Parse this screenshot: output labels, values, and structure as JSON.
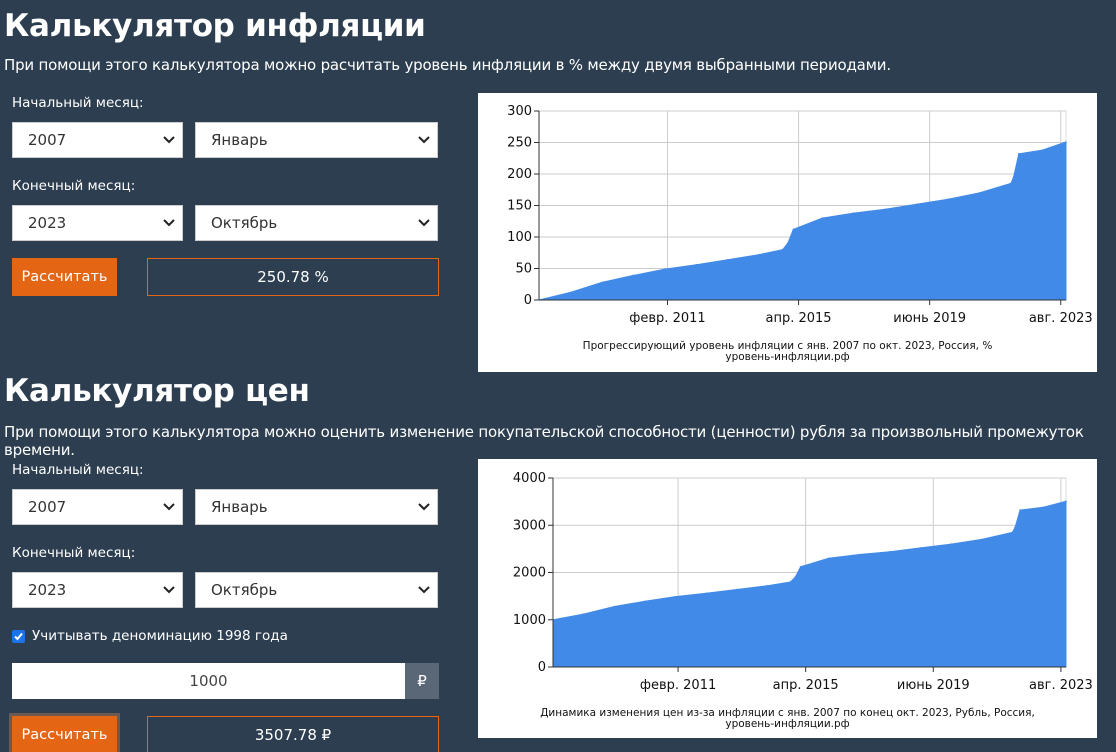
{
  "inflation": {
    "title": "Калькулятор инфляции",
    "description": "При помощи этого калькулятора можно расчитать уровень инфляции в % между двумя выбранными периодами.",
    "start_label": "Начальный месяц:",
    "start_year": "2007",
    "start_month": "Январь",
    "end_label": "Конечный месяц:",
    "end_year": "2023",
    "end_month": "Октябрь",
    "calc_button": "Рассчитать",
    "result": "250.78 %"
  },
  "prices": {
    "title": "Калькулятор цен",
    "description": "При помощи этого калькулятора можно оценить изменение покупательской способности (ценности) рубля за произвольный промежуток времени.",
    "start_label": "Начальный месяц:",
    "start_year": "2007",
    "start_month": "Январь",
    "end_label": "Конечный месяц:",
    "end_year": "2023",
    "end_month": "Октябрь",
    "denomination_label": "Учитывать деноминацию 1998 года",
    "denomination_checked": true,
    "amount": "1000",
    "currency_symbol": "₽",
    "calc_button": "Рассчитать",
    "result": "3507.78 ₽"
  },
  "colors": {
    "background": "#2c3e50",
    "accent": "#e46614",
    "chart_fill": "#428ae8"
  },
  "chart_data": [
    {
      "type": "area",
      "caption": "Прогрессирующий уровень инфляции с янв. 2007 по окт. 2023, Россия, %",
      "caption_source": "уровень-инфляции.рф",
      "x_tick_labels": [
        "февр. 2011",
        "апр. 2015",
        "июнь 2019",
        "авг. 2023"
      ],
      "y_tick_labels": [
        "0",
        "50",
        "100",
        "150",
        "200",
        "250",
        "300"
      ],
      "ylim": [
        0,
        300
      ],
      "x": [
        "2007-01",
        "2008-01",
        "2009-01",
        "2010-01",
        "2011-01",
        "2012-01",
        "2013-01",
        "2014-01",
        "2014-10",
        "2014-12",
        "2015-02",
        "2016-01",
        "2017-01",
        "2018-01",
        "2019-01",
        "2020-01",
        "2021-01",
        "2022-01",
        "2022-02",
        "2022-04",
        "2023-01",
        "2023-10"
      ],
      "values": [
        0,
        12,
        28,
        39,
        49,
        56,
        64,
        72,
        80,
        91,
        112,
        130,
        138,
        144,
        152,
        160,
        170,
        185,
        195,
        232,
        238,
        250.78
      ],
      "grid": true
    },
    {
      "type": "area",
      "caption": "Динамика изменения цен из-за инфляции с янв. 2007 по конец окт. 2023, Рубль, Россия,",
      "caption_source": "уровень-инфляции.рф",
      "x_tick_labels": [
        "февр. 2011",
        "апр. 2015",
        "июнь 2019",
        "авг. 2023"
      ],
      "y_tick_labels": [
        "0",
        "1000",
        "2000",
        "3000",
        "4000"
      ],
      "ylim": [
        0,
        4000
      ],
      "x": [
        "2007-01",
        "2008-01",
        "2009-01",
        "2010-01",
        "2011-01",
        "2012-01",
        "2013-01",
        "2014-01",
        "2014-10",
        "2014-12",
        "2015-02",
        "2016-01",
        "2017-01",
        "2018-01",
        "2019-01",
        "2020-01",
        "2021-01",
        "2022-01",
        "2022-02",
        "2022-04",
        "2023-01",
        "2023-10"
      ],
      "values": [
        1000,
        1120,
        1280,
        1390,
        1490,
        1560,
        1640,
        1720,
        1800,
        1910,
        2120,
        2300,
        2380,
        2440,
        2520,
        2600,
        2700,
        2850,
        2950,
        3320,
        3380,
        3507.78
      ],
      "grid": true
    }
  ]
}
